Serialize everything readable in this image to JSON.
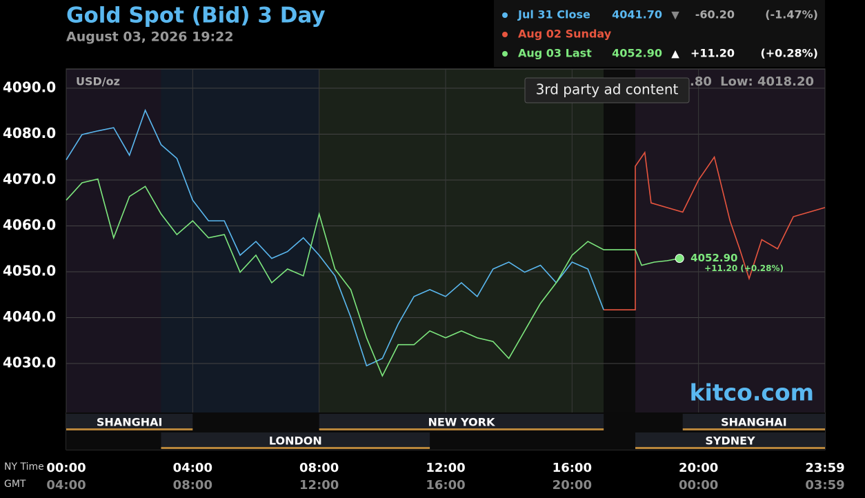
{
  "chart_data": {
    "type": "line",
    "title": "Gold Spot (Bid) 3 Day",
    "subtitle": "August 03, 2026 19:22",
    "unit_label": "USD/oz",
    "hi_lo_fragment": ".80",
    "low_label": "Low: 4018.20",
    "ad_label": "3rd party ad content",
    "brand": "kitco.com",
    "legend": [
      {
        "label": "Jul 31 Close",
        "price": "4041.70",
        "arrow": "▼",
        "change": "-60.20",
        "pct": "(-1.47%)"
      },
      {
        "label": "Aug 02 Sunday"
      },
      {
        "label": "Aug 03 Last",
        "price": "4052.90",
        "arrow": "▲",
        "change": "+11.20",
        "pct": "(+0.28%)"
      }
    ],
    "last_label": "4052.90",
    "last_change_label": "+11.20 (+0.28%)",
    "x_axis_label": "NY Time",
    "x2_axis_label": "GMT",
    "xlim": [
      0,
      24
    ],
    "xticks": [
      {
        "value": 0,
        "label": "00:00"
      },
      {
        "value": 4,
        "label": "04:00"
      },
      {
        "value": 8,
        "label": "08:00"
      },
      {
        "value": 12,
        "label": "12:00"
      },
      {
        "value": 16,
        "label": "16:00"
      },
      {
        "value": 20,
        "label": "20:00"
      },
      {
        "value": 24,
        "label": "23:59"
      }
    ],
    "gmt_labels": [
      "04:00",
      "08:00",
      "12:00",
      "16:00",
      "20:00",
      "00:00",
      "03:59"
    ],
    "ylim": [
      4011.2,
      4094.2
    ],
    "yticks": [
      {
        "value": 4030,
        "label": "4030.0"
      },
      {
        "value": 4040,
        "label": "4040.0"
      },
      {
        "value": 4050,
        "label": "4050.0"
      },
      {
        "value": 4060,
        "label": "4060.0"
      },
      {
        "value": 4070,
        "label": "4070.0"
      },
      {
        "value": 4080,
        "label": "4080.0"
      },
      {
        "value": 4090,
        "label": "4090.0"
      }
    ],
    "grid": true,
    "sessions": [
      {
        "name": "SHANGHAI",
        "start": 0,
        "end": 4,
        "row": 0
      },
      {
        "name": "LONDON",
        "start": 3,
        "end": 11.5,
        "row": 1
      },
      {
        "name": "NEW YORK",
        "start": 8,
        "end": 17,
        "row": 0
      },
      {
        "name": "SHANGHAI",
        "start": 19.5,
        "end": 24,
        "row": 0
      },
      {
        "name": "SYDNEY",
        "start": 18,
        "end": 24,
        "row": 1
      }
    ],
    "series": [
      {
        "name": "Jul 31 Close",
        "color": "#5ab8f0",
        "x": [
          0,
          0.5,
          1,
          1.5,
          2,
          2.5,
          3,
          3.5,
          4,
          4.5,
          5,
          5.5,
          6,
          6.5,
          7,
          7.5,
          8,
          8.5,
          9,
          9.5,
          10,
          10.5,
          11,
          11.5,
          12,
          12.5,
          13,
          13.5,
          14,
          14.5,
          15,
          15.5,
          16,
          16.5,
          17
        ],
        "values": [
          4074.4,
          4079.9,
          4080.7,
          4081.4,
          4075.4,
          4085.2,
          4077.7,
          4074.7,
          4065.6,
          4061.1,
          4061.1,
          4053.6,
          4056.6,
          4052.9,
          4054.4,
          4057.4,
          4053.6,
          4049.1,
          4040.1,
          4029.5,
          4031.1,
          4038.6,
          4044.6,
          4046.1,
          4044.6,
          4047.6,
          4044.6,
          4050.6,
          4052.1,
          4049.9,
          4051.4,
          4047.6,
          4052.1,
          4050.6,
          4041.7
        ]
      },
      {
        "name": "Aug 02 Sunday",
        "color": "#e8553f",
        "x": [
          17,
          18,
          18,
          18.3,
          18.5,
          19,
          19.5,
          20,
          20.5,
          21,
          21.3,
          21.6,
          22,
          22.5,
          23,
          23.5,
          24
        ],
        "values": [
          4041.7,
          4041.7,
          4073,
          4076,
          4065,
          4064,
          4063,
          4070,
          4075,
          4061,
          4055,
          4048.5,
          4057,
          4055,
          4062,
          4063,
          4064
        ]
      },
      {
        "name": "Aug 03 Last",
        "color": "#7ee87e",
        "x": [
          0,
          0.5,
          1,
          1.5,
          2,
          2.5,
          3,
          3.5,
          4,
          4.5,
          5,
          5.5,
          6,
          6.5,
          7,
          7.5,
          8,
          8.5,
          9,
          9.5,
          10,
          10.5,
          11,
          11.5,
          12,
          12.5,
          13,
          13.5,
          14,
          14.5,
          15,
          15.5,
          16,
          16.5,
          17,
          18,
          18.2,
          18.6,
          19,
          19.4
        ],
        "values": [
          4065.6,
          4069.4,
          4070.2,
          4057.4,
          4066.4,
          4068.6,
          4062.6,
          4058.1,
          4061.1,
          4057.4,
          4058.1,
          4049.9,
          4053.6,
          4047.6,
          4050.6,
          4049.1,
          4062.6,
          4050.6,
          4046.1,
          4035.6,
          4027.3,
          4034.1,
          4034.1,
          4037.1,
          4035.6,
          4037.1,
          4035.6,
          4034.8,
          4031.1,
          4037.1,
          4043.1,
          4047.6,
          4053.6,
          4056.6,
          4054.8,
          4054.8,
          4051.4,
          4052.1,
          4052.4,
          4052.9
        ]
      }
    ]
  }
}
